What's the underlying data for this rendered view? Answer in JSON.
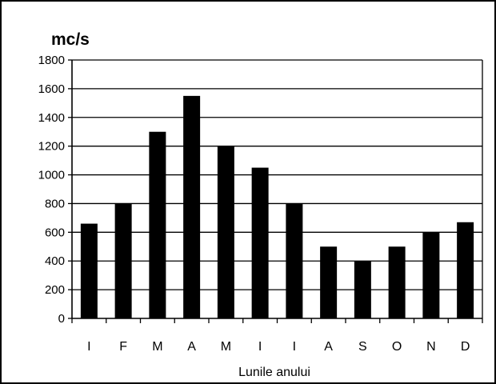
{
  "chart_data": {
    "type": "bar",
    "title": "",
    "ylabel": "mc/s",
    "xlabel": "Lunile anului",
    "categories": [
      "I",
      "F",
      "M",
      "A",
      "M",
      "I",
      "I",
      "A",
      "S",
      "O",
      "N",
      "D"
    ],
    "values": [
      660,
      800,
      1300,
      1550,
      1200,
      1050,
      800,
      500,
      400,
      500,
      600,
      670
    ],
    "ylim": [
      0,
      1800
    ],
    "yticks": [
      "0",
      "200",
      "400",
      "600",
      "800",
      "1000",
      "1200",
      "1400",
      "1600",
      "1800"
    ],
    "grid": true,
    "legend": "none",
    "bar_color": "#000000"
  }
}
